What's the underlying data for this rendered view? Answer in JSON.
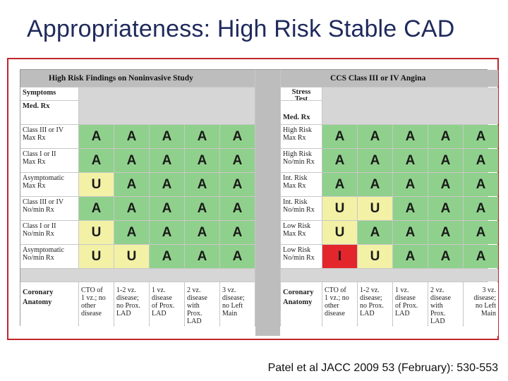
{
  "slide": {
    "title": "Appropriateness:  High Risk Stable CAD",
    "citation": "Patel et al JACC 2009 53 (February): 530-553"
  },
  "left_panel": {
    "header": "High Risk Findings on Noninvasive Study",
    "symptoms_label": "Symptoms",
    "medrx_label": "Med. Rx",
    "row_labels": [
      [
        "Class III or IV",
        "Max Rx"
      ],
      [
        "Class I or II",
        "Max Rx"
      ],
      [
        "Asymptomatic",
        "Max Rx"
      ],
      [
        "Class III or IV",
        "No/min Rx"
      ],
      [
        "Class I or II",
        "No/min Rx"
      ],
      [
        "Asymptomatic",
        "No/min Rx"
      ]
    ],
    "ratings": [
      [
        "A",
        "A",
        "A",
        "A",
        "A"
      ],
      [
        "A",
        "A",
        "A",
        "A",
        "A"
      ],
      [
        "U",
        "A",
        "A",
        "A",
        "A"
      ],
      [
        "A",
        "A",
        "A",
        "A",
        "A"
      ],
      [
        "U",
        "A",
        "A",
        "A",
        "A"
      ],
      [
        "U",
        "U",
        "A",
        "A",
        "A"
      ]
    ],
    "anatomy_label": [
      "Coronary",
      "Anatomy"
    ],
    "anatomy": [
      [
        "CTO of",
        "1 vz.; no",
        "other",
        "disease"
      ],
      [
        "1-2 vz.",
        "disease;",
        "no Prox.",
        "LAD"
      ],
      [
        "1 vz.",
        "disease",
        "of Prox.",
        "LAD"
      ],
      [
        "2 vz.",
        "disease",
        "with",
        "Prox.",
        "LAD"
      ],
      [
        "3 vz.",
        "disease;",
        "no Left",
        "Main"
      ]
    ]
  },
  "right_panel": {
    "header": "CCS Class III or IV Angina",
    "stress_label": [
      "Stress",
      "Test"
    ],
    "medrx_label": "Med. Rx",
    "row_labels": [
      [
        "High Risk",
        "Max Rx"
      ],
      [
        "High Risk",
        "No/min Rx"
      ],
      [
        "Int. Risk",
        "Max Rx"
      ],
      [
        "Int. Risk",
        "No/min Rx"
      ],
      [
        "Low Risk",
        "Max Rx"
      ],
      [
        "Low Risk",
        "No/min Rx"
      ]
    ],
    "ratings": [
      [
        "A",
        "A",
        "A",
        "A",
        "A"
      ],
      [
        "A",
        "A",
        "A",
        "A",
        "A"
      ],
      [
        "A",
        "A",
        "A",
        "A",
        "A"
      ],
      [
        "U",
        "U",
        "A",
        "A",
        "A"
      ],
      [
        "U",
        "A",
        "A",
        "A",
        "A"
      ],
      [
        "I",
        "U",
        "A",
        "A",
        "A"
      ]
    ],
    "anatomy_label": [
      "Coronary",
      "Anatomy"
    ],
    "anatomy": [
      [
        "CTO of",
        "1 vz.; no",
        "other",
        "disease"
      ],
      [
        "1-2 vz.",
        "disease;",
        "no Prox.",
        "LAD"
      ],
      [
        "1 vz.",
        "disease",
        "of Prox.",
        "LAD"
      ],
      [
        "2 vz.",
        "disease",
        "with",
        "Prox.",
        "LAD"
      ],
      [
        "3 vz.",
        "disease;",
        "no Left",
        "Main"
      ]
    ]
  },
  "colors": {
    "appropriate": "#8fd18c",
    "uncertain": "#f3f1a6",
    "inappropriate": "#e3262b",
    "frame_border": "#c0262b",
    "title": "#1f2a5c"
  }
}
